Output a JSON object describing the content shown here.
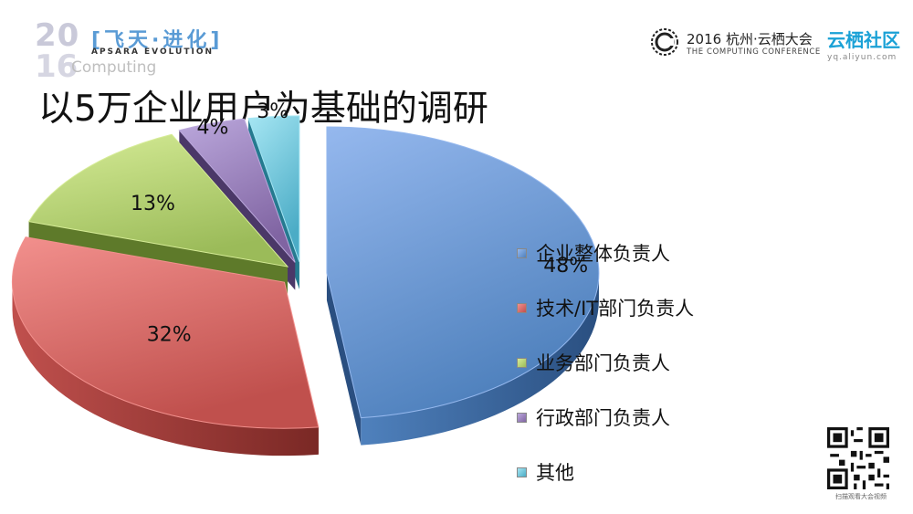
{
  "header": {
    "logo_year_top": "20",
    "logo_year_bottom": "16",
    "logo_computing": "Computing",
    "logo_slogan": "[飞天·进化]",
    "logo_slogan_sub": "APSARA EVOLUTION",
    "conference_title": "2016 杭州·云栖大会",
    "conference_subtitle": "THE COMPUTING CONFERENCE",
    "community_name": "云栖社区",
    "community_url": "yq.aliyun.com"
  },
  "page_title": "以5万企业用户为基础的调研",
  "footer": {
    "qr_caption": "扫描观看大会视频"
  },
  "colors": {
    "series": [
      "#4f81bd",
      "#c0504d",
      "#9bbb59",
      "#8064a2",
      "#4bacc6"
    ],
    "series_light": [
      "#95b8ee",
      "#f2908d",
      "#d6ec97",
      "#bba8dc",
      "#a6e6f3"
    ],
    "series_dark": [
      "#2a4f80",
      "#7a2825",
      "#5e7a2a",
      "#4b3868",
      "#257a8f"
    ],
    "accent": "#1aa1d6"
  },
  "chart_data": {
    "type": "pie",
    "style": "3d-exploded",
    "title": "",
    "categories": [
      "企业整体负责人",
      "技术/IT部门负责人",
      "业务部门负责人",
      "行政部门负责人",
      "其他"
    ],
    "values": [
      48,
      32,
      13,
      4,
      3
    ],
    "data_labels": [
      "48%",
      "32%",
      "13%",
      "4%",
      "3%"
    ],
    "legend_position": "right"
  }
}
